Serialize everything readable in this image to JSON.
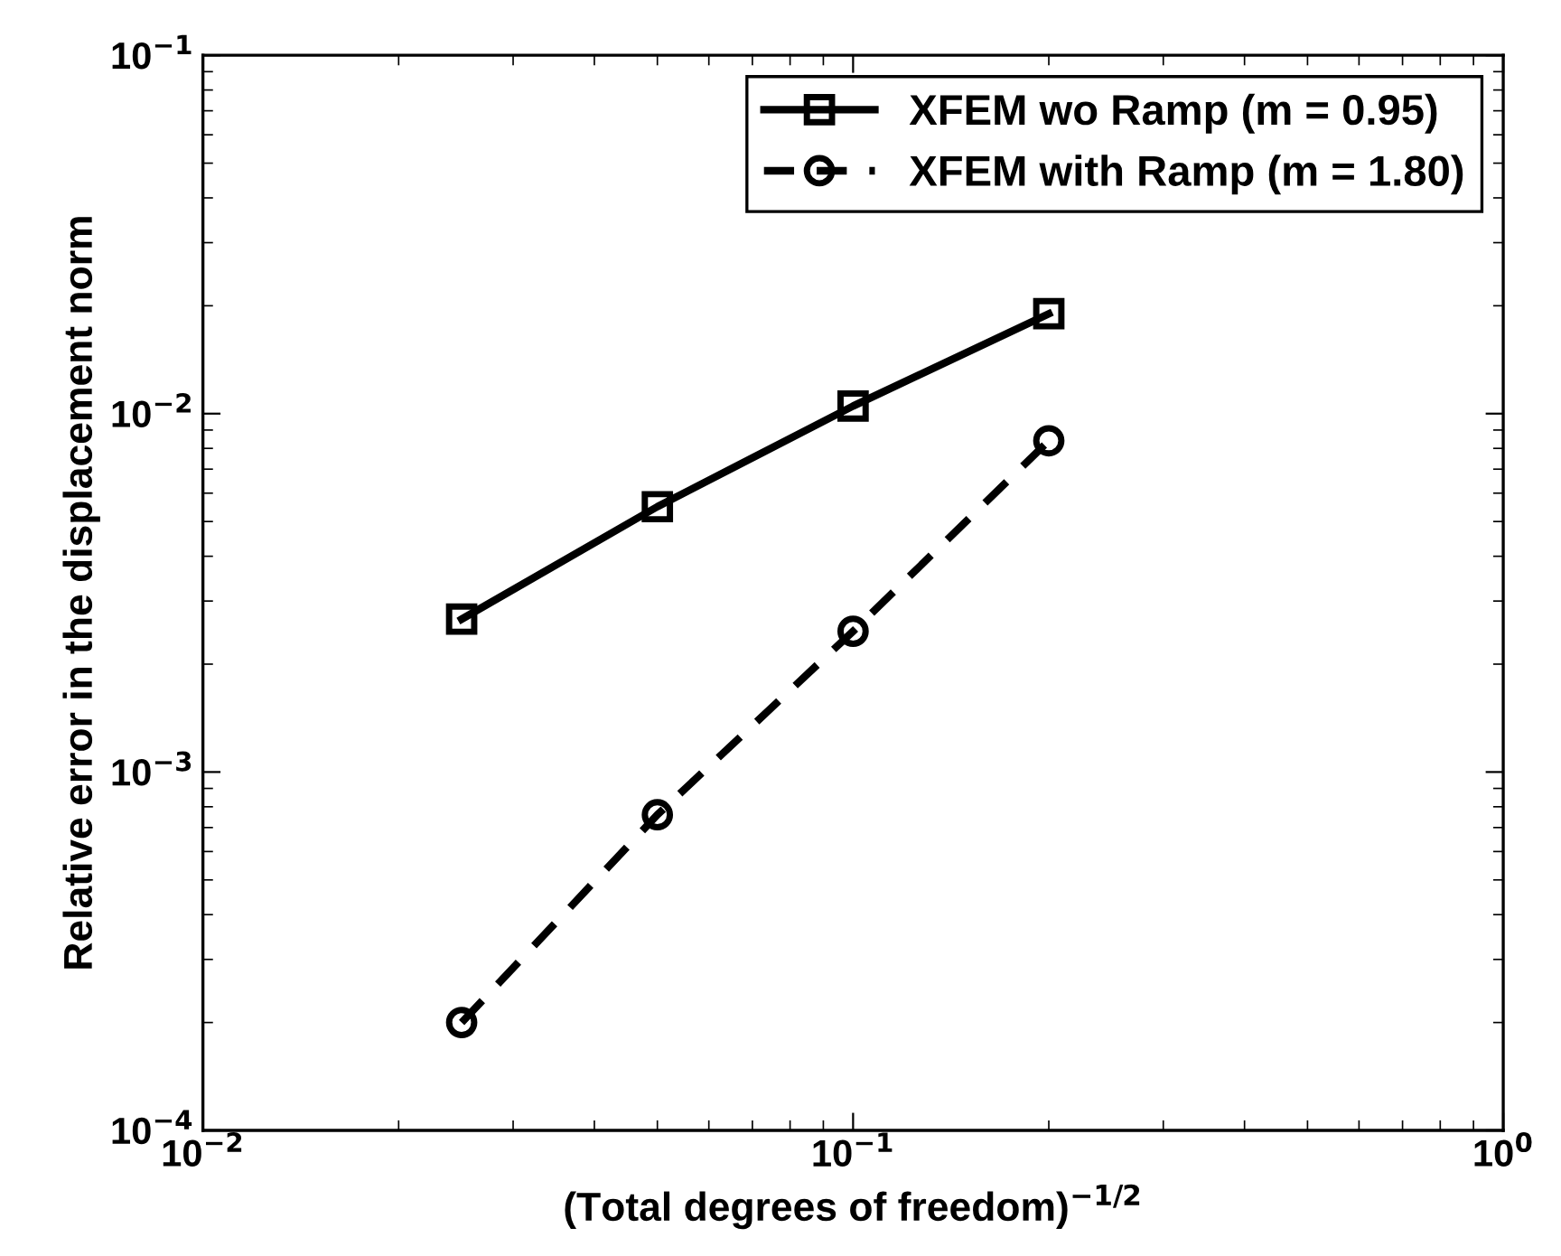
{
  "chart_data": {
    "type": "line",
    "xlabel": "(Total degrees of freedom)$^{−1/2}$",
    "ylabel": "Relative error in the displacement norm",
    "log": "xy",
    "xlim": [
      0.01,
      1
    ],
    "ylim": [
      0.0001,
      0.1
    ],
    "xticks": [
      {
        "value": 0.01,
        "label": "10$^{−2}$"
      },
      {
        "value": 0.1,
        "label": "10$^{−1}$"
      },
      {
        "value": 1,
        "label": "10$^{0}$"
      }
    ],
    "yticks": [
      {
        "value": 0.0001,
        "label": "10$^{−4}$"
      },
      {
        "value": 0.001,
        "label": "10$^{−3}$"
      },
      {
        "value": 0.01,
        "label": "10$^{−2}$"
      },
      {
        "value": 0.1,
        "label": "10$^{−1}$"
      }
    ],
    "x": [
      0.025,
      0.05,
      0.1,
      0.2
    ],
    "legend": "top right",
    "grid": false,
    "series": [
      {
        "name": "XFEM wo Ramp (m = 0.95)",
        "color": "#000000",
        "marker": "square",
        "line_style": "solid",
        "values": [
          0.00267,
          0.0055,
          0.0105,
          0.019
        ]
      },
      {
        "name": "XFEM with Ramp (m = 1.80)",
        "color": "#000000",
        "marker": "circle",
        "line_style": "dashed",
        "values": [
          0.0002,
          0.00076,
          0.00247,
          0.0084
        ]
      }
    ]
  }
}
